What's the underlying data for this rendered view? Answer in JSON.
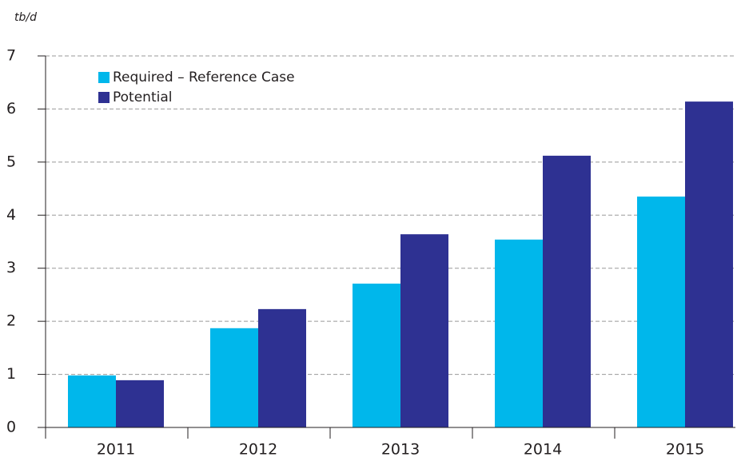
{
  "chart_data": {
    "type": "bar",
    "unit_label": "tb/d",
    "categories": [
      "2011",
      "2012",
      "2013",
      "2014",
      "2015"
    ],
    "series": [
      {
        "name": "Required – Reference Case",
        "color": "#00b7eb",
        "values": [
          0.98,
          1.87,
          2.71,
          3.54,
          4.35
        ]
      },
      {
        "name": "Potential",
        "color": "#2e3192",
        "values": [
          0.89,
          2.23,
          3.64,
          5.12,
          6.14
        ]
      }
    ],
    "ylim": [
      0,
      7
    ],
    "yticks": [
      0,
      1,
      2,
      3,
      4,
      5,
      6,
      7
    ],
    "grid": true,
    "legend": "top-left"
  }
}
